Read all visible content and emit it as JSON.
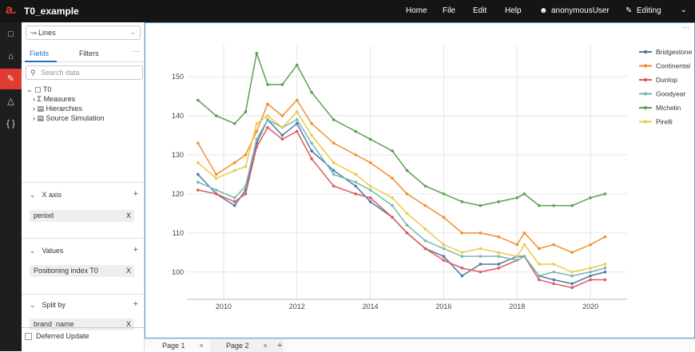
{
  "app": {
    "title": "T0_example"
  },
  "menu": [
    "Home",
    "File",
    "Edit",
    "Help"
  ],
  "user": {
    "name": "anonymousUser"
  },
  "mode": {
    "label": "Editing"
  },
  "widget_select": {
    "value": "Lines"
  },
  "panel_tabs": {
    "fields": "Fields",
    "filters": "Filters"
  },
  "search": {
    "placeholder": "Search data"
  },
  "tree": {
    "root": "T0",
    "children": [
      "Measures",
      "Hierarchies",
      "Source Simulation"
    ]
  },
  "sections": {
    "x_axis": {
      "title": "X axis",
      "chip": "period"
    },
    "values": {
      "title": "Values",
      "chip": "Positioning index T0"
    },
    "split_by": {
      "title": "Split by",
      "chip": "brand_name"
    }
  },
  "deferred": "Deferred Update",
  "pages": [
    "Page 1",
    "Page 2"
  ],
  "chart_data": {
    "type": "line",
    "x_ticks": [
      "2010",
      "2012",
      "2014",
      "2016",
      "2018",
      "2020"
    ],
    "y_ticks": [
      100,
      110,
      120,
      130,
      140,
      150
    ],
    "xlim": [
      2009.0,
      2021.0
    ],
    "ylim": [
      93,
      158
    ],
    "legend_position": "right",
    "grid": true,
    "x": [
      2009.3,
      2009.8,
      2010.3,
      2010.6,
      2010.9,
      2011.2,
      2011.6,
      2012.0,
      2012.4,
      2013.0,
      2013.6,
      2014.0,
      2014.6,
      2015.0,
      2015.5,
      2016.0,
      2016.5,
      2017.0,
      2017.5,
      2018.0,
      2018.2,
      2018.6,
      2019.0,
      2019.5,
      2020.0,
      2020.4
    ],
    "series": [
      {
        "name": "Bridgestone",
        "color": "#4e79a7",
        "values": [
          125,
          120,
          117,
          121,
          133,
          139,
          135,
          138,
          131,
          126,
          122,
          118,
          114,
          110,
          106,
          104,
          99,
          102,
          102,
          104,
          104,
          99,
          98,
          97,
          99,
          100
        ]
      },
      {
        "name": "Continental",
        "color": "#f28e2b",
        "values": [
          133,
          125,
          128,
          130,
          136,
          143,
          140,
          144,
          138,
          133,
          130,
          128,
          124,
          120,
          117,
          114,
          110,
          110,
          109,
          107,
          110,
          106,
          107,
          105,
          107,
          109
        ]
      },
      {
        "name": "Dunlop",
        "color": "#e15759",
        "values": [
          121,
          120,
          118,
          120,
          132,
          137,
          134,
          136,
          129,
          122,
          120,
          119,
          114,
          110,
          106,
          103,
          101,
          100,
          101,
          103,
          104,
          98,
          97,
          96,
          98,
          98
        ]
      },
      {
        "name": "Goodyear",
        "color": "#76b7b2",
        "values": [
          123,
          121,
          119,
          122,
          134,
          139,
          137,
          139,
          133,
          125,
          123,
          121,
          117,
          112,
          108,
          106,
          104,
          104,
          104,
          103,
          104,
          99,
          100,
          99,
          100,
          101
        ]
      },
      {
        "name": "Michelin",
        "color": "#59a14f",
        "values": [
          144,
          140,
          138,
          141,
          156,
          148,
          148,
          153,
          146,
          139,
          136,
          134,
          131,
          126,
          122,
          120,
          118,
          117,
          118,
          119,
          120,
          117,
          117,
          117,
          119,
          120
        ]
      },
      {
        "name": "Pirelli",
        "color": "#edc948",
        "values": [
          128,
          124,
          126,
          127,
          138,
          140,
          137,
          141,
          135,
          128,
          125,
          122,
          119,
          115,
          111,
          107,
          105,
          106,
          105,
          104,
          107,
          102,
          102,
          100,
          101,
          102
        ]
      }
    ]
  }
}
